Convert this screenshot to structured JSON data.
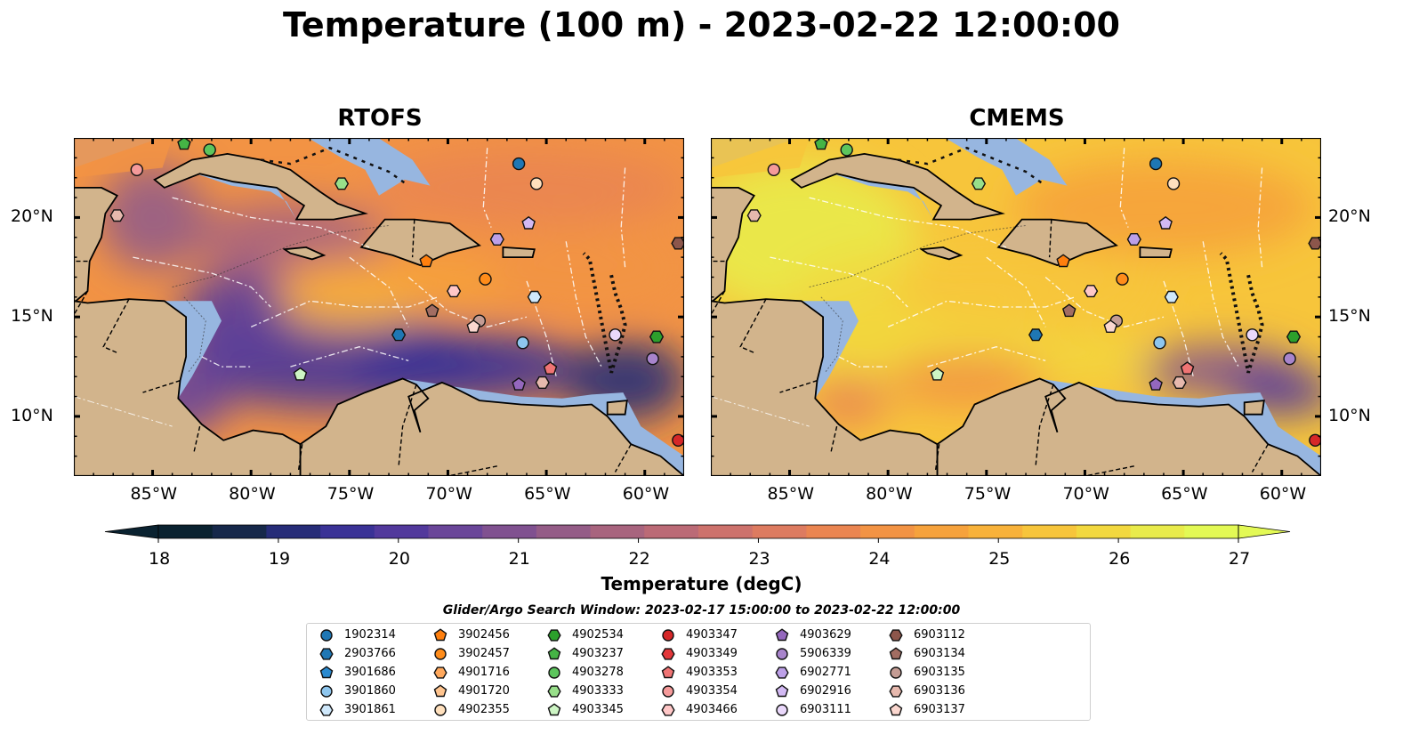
{
  "title": "Temperature (100 m) - 2023-02-22 12:00:00",
  "panels": [
    {
      "name": "RTOFS",
      "scheme": "rtofs"
    },
    {
      "name": "CMEMS",
      "scheme": "cmems"
    }
  ],
  "map_extent": {
    "lon": [
      -89,
      -58
    ],
    "lat": [
      7,
      24
    ]
  },
  "lon_ticks": [
    {
      "value": -85,
      "label": "85°W"
    },
    {
      "value": -80,
      "label": "80°W"
    },
    {
      "value": -75,
      "label": "75°W"
    },
    {
      "value": -70,
      "label": "70°W"
    },
    {
      "value": -65,
      "label": "65°W"
    },
    {
      "value": -60,
      "label": "60°W"
    }
  ],
  "lat_ticks": [
    {
      "value": 10,
      "label": "10°N"
    },
    {
      "value": 15,
      "label": "15°N"
    },
    {
      "value": 20,
      "label": "20°N"
    }
  ],
  "colorbar": {
    "min": 18,
    "max": 27,
    "labels": [
      "18",
      "19",
      "20",
      "21",
      "22",
      "23",
      "24",
      "25",
      "26",
      "27"
    ],
    "title": "Temperature (degC)",
    "colors": [
      "#0a2230",
      "#16284a",
      "#262c78",
      "#3a3296",
      "#52399c",
      "#6a4699",
      "#805190",
      "#945c87",
      "#a8647e",
      "#bb6a76",
      "#cd726c",
      "#dd7b60",
      "#ea8551",
      "#f29344",
      "#f6a23c",
      "#f8b23a",
      "#f7c53b",
      "#f2d83f",
      "#e9eb4b",
      "#e3f955"
    ]
  },
  "land_color": "#d2b48c",
  "shelf_color": "#97b6e0",
  "legend": {
    "title": "Glider/Argo Search Window: 2023-02-17 15:00:00 to 2023-02-22 12:00:00",
    "items": [
      {
        "label": "1902314",
        "marker": "circle",
        "color": "#1f77b4"
      },
      {
        "label": "2903766",
        "marker": "hexagon",
        "color": "#1f77b4"
      },
      {
        "label": "3901686",
        "marker": "pentagon",
        "color": "#2a8ad0"
      },
      {
        "label": "3901860",
        "marker": "circle",
        "color": "#8ec6ee"
      },
      {
        "label": "3901861",
        "marker": "hexagon",
        "color": "#cfe8fb"
      },
      {
        "label": "3902456",
        "marker": "pentagon",
        "color": "#ff7f0e"
      },
      {
        "label": "3902457",
        "marker": "circle",
        "color": "#ff8c1a"
      },
      {
        "label": "4901716",
        "marker": "hexagon",
        "color": "#ffa85c"
      },
      {
        "label": "4901720",
        "marker": "pentagon",
        "color": "#ffc48e"
      },
      {
        "label": "4902355",
        "marker": "circle",
        "color": "#ffe0bd"
      },
      {
        "label": "4902534",
        "marker": "hexagon",
        "color": "#2ca02c"
      },
      {
        "label": "4903237",
        "marker": "pentagon",
        "color": "#45b445"
      },
      {
        "label": "4903278",
        "marker": "circle",
        "color": "#5dc55d"
      },
      {
        "label": "4903333",
        "marker": "hexagon",
        "color": "#98df8a"
      },
      {
        "label": "4903345",
        "marker": "pentagon",
        "color": "#cdf5c4"
      },
      {
        "label": "4903347",
        "marker": "circle",
        "color": "#d62728"
      },
      {
        "label": "4903349",
        "marker": "hexagon",
        "color": "#e3373a"
      },
      {
        "label": "4903353",
        "marker": "pentagon",
        "color": "#f07474"
      },
      {
        "label": "4903354",
        "marker": "circle",
        "color": "#f59a9a"
      },
      {
        "label": "4903466",
        "marker": "hexagon",
        "color": "#ffc7c7"
      },
      {
        "label": "4903629",
        "marker": "pentagon",
        "color": "#9467bd"
      },
      {
        "label": "5906339",
        "marker": "circle",
        "color": "#a884cc"
      },
      {
        "label": "6902771",
        "marker": "hexagon",
        "color": "#bda0e8"
      },
      {
        "label": "6902916",
        "marker": "pentagon",
        "color": "#d2b9f3"
      },
      {
        "label": "6903111",
        "marker": "circle",
        "color": "#ead8fb"
      },
      {
        "label": "6903112",
        "marker": "hexagon",
        "color": "#8c564b"
      },
      {
        "label": "6903134",
        "marker": "pentagon",
        "color": "#a26d62"
      },
      {
        "label": "6903135",
        "marker": "circle",
        "color": "#c49c94"
      },
      {
        "label": "6903136",
        "marker": "hexagon",
        "color": "#e7b9ae"
      },
      {
        "label": "6903137",
        "marker": "pentagon",
        "color": "#fbd7cf"
      }
    ]
  },
  "floats": [
    {
      "id": "1902314",
      "lon": -66.4,
      "lat": 22.7
    },
    {
      "id": "4902355",
      "lon": -65.5,
      "lat": 21.7
    },
    {
      "id": "6902916",
      "lon": -65.9,
      "lat": 19.7
    },
    {
      "id": "6902771",
      "lon": -67.5,
      "lat": 18.9
    },
    {
      "id": "6903112",
      "lon": -58.3,
      "lat": 18.7
    },
    {
      "id": "3902456",
      "lon": -71.1,
      "lat": 17.8
    },
    {
      "id": "3902457",
      "lon": -68.1,
      "lat": 16.9
    },
    {
      "id": "4903466",
      "lon": -69.7,
      "lat": 16.3
    },
    {
      "id": "3901861",
      "lon": -65.6,
      "lat": 16.0
    },
    {
      "id": "6903134",
      "lon": -70.8,
      "lat": 15.3
    },
    {
      "id": "6903135",
      "lon": -68.4,
      "lat": 14.8
    },
    {
      "id": "6903137",
      "lon": -68.7,
      "lat": 14.5
    },
    {
      "id": "2903766",
      "lon": -72.5,
      "lat": 14.1
    },
    {
      "id": "3901860",
      "lon": -66.2,
      "lat": 13.7
    },
    {
      "id": "6903111",
      "lon": -61.5,
      "lat": 14.1
    },
    {
      "id": "4902534",
      "lon": -59.4,
      "lat": 14.0
    },
    {
      "id": "5906339",
      "lon": -59.6,
      "lat": 12.9
    },
    {
      "id": "4903353",
      "lon": -64.8,
      "lat": 12.4
    },
    {
      "id": "6903136",
      "lon": -65.2,
      "lat": 11.7
    },
    {
      "id": "4903629",
      "lon": -66.4,
      "lat": 11.6
    },
    {
      "id": "4903345",
      "lon": -77.5,
      "lat": 12.1
    },
    {
      "id": "4903347",
      "lon": -58.3,
      "lat": 8.8
    },
    {
      "id": "4903354",
      "lon": -85.8,
      "lat": 22.4
    },
    {
      "id": "6903136",
      "lon": -86.8,
      "lat": 20.1
    },
    {
      "id": "4903278",
      "lon": -82.1,
      "lat": 23.4
    },
    {
      "id": "4903237",
      "lon": -83.4,
      "lat": 23.7
    },
    {
      "id": "4903333",
      "lon": -75.4,
      "lat": 21.7
    }
  ]
}
